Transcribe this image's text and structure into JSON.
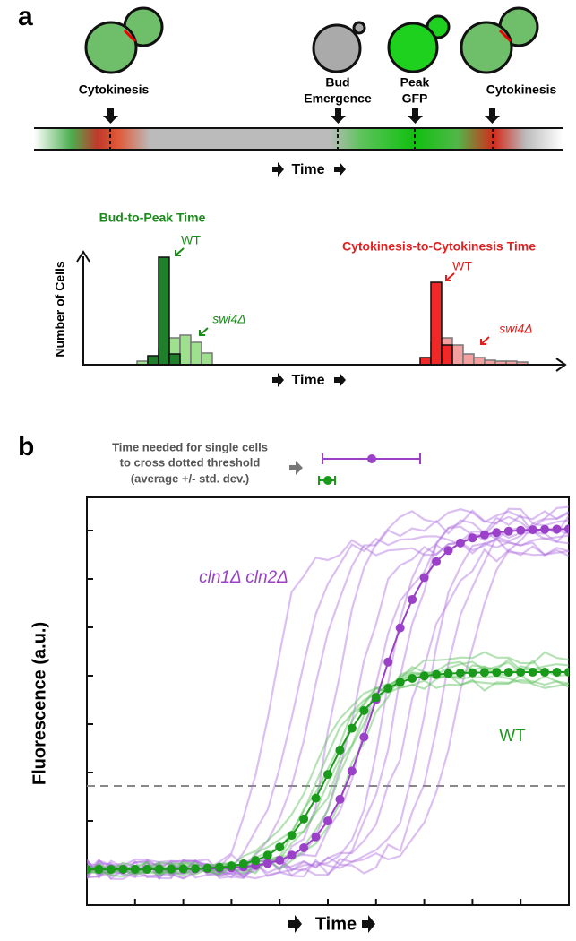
{
  "panel_a": {
    "label": "a",
    "events": [
      {
        "lines": [
          "Cytokinesis"
        ]
      },
      {
        "lines": [
          "Bud",
          "Emergence"
        ]
      },
      {
        "lines": [
          "Peak",
          "GFP"
        ]
      },
      {
        "lines": [
          "Cytokinesis"
        ]
      }
    ],
    "time_label": "Time",
    "histogram": {
      "y_label": "Number of Cells",
      "x_label": "Time",
      "groups": [
        {
          "title": "Bud-to-Peak Time",
          "wt": "WT",
          "mutant": "swi4Δ"
        },
        {
          "title": "Cytokinesis-to-Cytokinesis Time",
          "wt": "WT",
          "mutant": "swi4Δ"
        }
      ]
    }
  },
  "panel_b": {
    "label": "b",
    "note": [
      "Time needed for single cells",
      "to cross dotted threshold",
      "(average +/- std. dev.)"
    ],
    "mutant": "cln1Δ cln2Δ",
    "wt": "WT",
    "y_label": "Fluorescence (a.u.)",
    "x_label": "Time"
  }
}
